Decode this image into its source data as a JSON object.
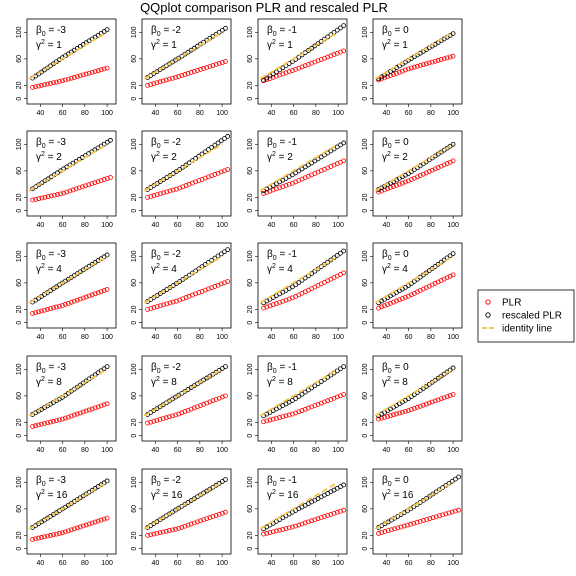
{
  "chart_data": {
    "type": "scatter",
    "title": "QQplot comparison PLR and rescaled PLR",
    "xlabel": "",
    "ylabel": "",
    "xlim": [
      28,
      108
    ],
    "ylim": [
      -8,
      120
    ],
    "xticks": [
      40,
      60,
      80,
      100
    ],
    "yticks": [
      0,
      20,
      60,
      100
    ],
    "grid": false,
    "legend_position": "right",
    "legend": [
      {
        "name": "PLR",
        "color": "#ff0000",
        "marker": "circle"
      },
      {
        "name": "rescaled PLR",
        "color": "#000000",
        "marker": "circle"
      },
      {
        "name": "identity line",
        "color": "#f5c542",
        "marker": "dashed-line"
      }
    ],
    "beta_values": [
      -3,
      -2,
      -1,
      0
    ],
    "gamma2_values": [
      1,
      2,
      4,
      8,
      16
    ],
    "panels": [
      {
        "beta": "-3",
        "gamma2": "1",
        "plr": [
          [
            33,
            17
          ],
          [
            60,
            27
          ],
          [
            100,
            46
          ]
        ],
        "rescaled": [
          [
            33,
            31
          ],
          [
            60,
            62
          ],
          [
            100,
            104
          ]
        ]
      },
      {
        "beta": "-2",
        "gamma2": "1",
        "plr": [
          [
            33,
            20
          ],
          [
            60,
            33
          ],
          [
            103,
            56
          ]
        ],
        "rescaled": [
          [
            33,
            32
          ],
          [
            60,
            60
          ],
          [
            103,
            106
          ]
        ]
      },
      {
        "beta": "-1",
        "gamma2": "1",
        "plr": [
          [
            33,
            27
          ],
          [
            60,
            43
          ],
          [
            105,
            72
          ]
        ],
        "rescaled": [
          [
            33,
            28
          ],
          [
            60,
            57
          ],
          [
            105,
            110
          ]
        ]
      },
      {
        "beta": "0",
        "gamma2": "1",
        "plr": [
          [
            33,
            28
          ],
          [
            60,
            45
          ],
          [
            100,
            64
          ]
        ],
        "rescaled": [
          [
            33,
            30
          ],
          [
            60,
            58
          ],
          [
            100,
            98
          ]
        ]
      },
      {
        "beta": "-3",
        "gamma2": "2",
        "plr": [
          [
            33,
            16
          ],
          [
            60,
            26
          ],
          [
            103,
            50
          ]
        ],
        "rescaled": [
          [
            33,
            33
          ],
          [
            60,
            62
          ],
          [
            103,
            106
          ]
        ]
      },
      {
        "beta": "-2",
        "gamma2": "2",
        "plr": [
          [
            33,
            20
          ],
          [
            60,
            33
          ],
          [
            105,
            62
          ]
        ],
        "rescaled": [
          [
            33,
            32
          ],
          [
            60,
            60
          ],
          [
            105,
            112
          ]
        ]
      },
      {
        "beta": "-1",
        "gamma2": "2",
        "plr": [
          [
            33,
            26
          ],
          [
            60,
            42
          ],
          [
            105,
            75
          ]
        ],
        "rescaled": [
          [
            33,
            30
          ],
          [
            60,
            55
          ],
          [
            105,
            102
          ]
        ]
      },
      {
        "beta": "0",
        "gamma2": "2",
        "plr": [
          [
            33,
            28
          ],
          [
            60,
            45
          ],
          [
            100,
            75
          ]
        ],
        "rescaled": [
          [
            33,
            32
          ],
          [
            60,
            56
          ],
          [
            100,
            100
          ]
        ]
      },
      {
        "beta": "-3",
        "gamma2": "4",
        "plr": [
          [
            33,
            14
          ],
          [
            60,
            26
          ],
          [
            100,
            50
          ]
        ],
        "rescaled": [
          [
            33,
            31
          ],
          [
            60,
            60
          ],
          [
            100,
            102
          ]
        ]
      },
      {
        "beta": "-2",
        "gamma2": "4",
        "plr": [
          [
            33,
            20
          ],
          [
            60,
            33
          ],
          [
            105,
            62
          ]
        ],
        "rescaled": [
          [
            33,
            32
          ],
          [
            60,
            60
          ],
          [
            105,
            110
          ]
        ]
      },
      {
        "beta": "-1",
        "gamma2": "4",
        "plr": [
          [
            33,
            22
          ],
          [
            60,
            38
          ],
          [
            105,
            75
          ]
        ],
        "rescaled": [
          [
            33,
            30
          ],
          [
            60,
            55
          ],
          [
            105,
            108
          ]
        ]
      },
      {
        "beta": "0",
        "gamma2": "4",
        "plr": [
          [
            33,
            22
          ],
          [
            60,
            40
          ],
          [
            100,
            72
          ]
        ],
        "rescaled": [
          [
            33,
            30
          ],
          [
            60,
            56
          ],
          [
            100,
            104
          ]
        ]
      },
      {
        "beta": "-3",
        "gamma2": "8",
        "plr": [
          [
            33,
            14
          ],
          [
            60,
            25
          ],
          [
            100,
            48
          ]
        ],
        "rescaled": [
          [
            33,
            32
          ],
          [
            60,
            58
          ],
          [
            100,
            104
          ]
        ]
      },
      {
        "beta": "-2",
        "gamma2": "8",
        "plr": [
          [
            33,
            19
          ],
          [
            60,
            32
          ],
          [
            103,
            60
          ]
        ],
        "rescaled": [
          [
            33,
            32
          ],
          [
            60,
            60
          ],
          [
            103,
            104
          ]
        ]
      },
      {
        "beta": "-1",
        "gamma2": "8",
        "plr": [
          [
            33,
            21
          ],
          [
            60,
            33
          ],
          [
            105,
            62
          ]
        ],
        "rescaled": [
          [
            33,
            30
          ],
          [
            60,
            54
          ],
          [
            105,
            104
          ]
        ]
      },
      {
        "beta": "0",
        "gamma2": "8",
        "plr": [
          [
            33,
            25
          ],
          [
            60,
            38
          ],
          [
            100,
            62
          ]
        ],
        "rescaled": [
          [
            33,
            30
          ],
          [
            60,
            56
          ],
          [
            100,
            102
          ]
        ]
      },
      {
        "beta": "-3",
        "gamma2": "16",
        "plr": [
          [
            33,
            14
          ],
          [
            60,
            24
          ],
          [
            100,
            46
          ]
        ],
        "rescaled": [
          [
            33,
            32
          ],
          [
            60,
            60
          ],
          [
            100,
            102
          ]
        ]
      },
      {
        "beta": "-2",
        "gamma2": "16",
        "plr": [
          [
            33,
            20
          ],
          [
            60,
            30
          ],
          [
            103,
            55
          ]
        ],
        "rescaled": [
          [
            33,
            32
          ],
          [
            60,
            60
          ],
          [
            103,
            104
          ]
        ]
      },
      {
        "beta": "-1",
        "gamma2": "16",
        "plr": [
          [
            33,
            22
          ],
          [
            60,
            33
          ],
          [
            105,
            58
          ]
        ],
        "rescaled": [
          [
            33,
            30
          ],
          [
            60,
            56
          ],
          [
            105,
            96
          ]
        ]
      },
      {
        "beta": "0",
        "gamma2": "16",
        "plr": [
          [
            33,
            23
          ],
          [
            60,
            36
          ],
          [
            105,
            58
          ]
        ],
        "rescaled": [
          [
            33,
            32
          ],
          [
            60,
            58
          ],
          [
            105,
            108
          ]
        ]
      }
    ]
  }
}
